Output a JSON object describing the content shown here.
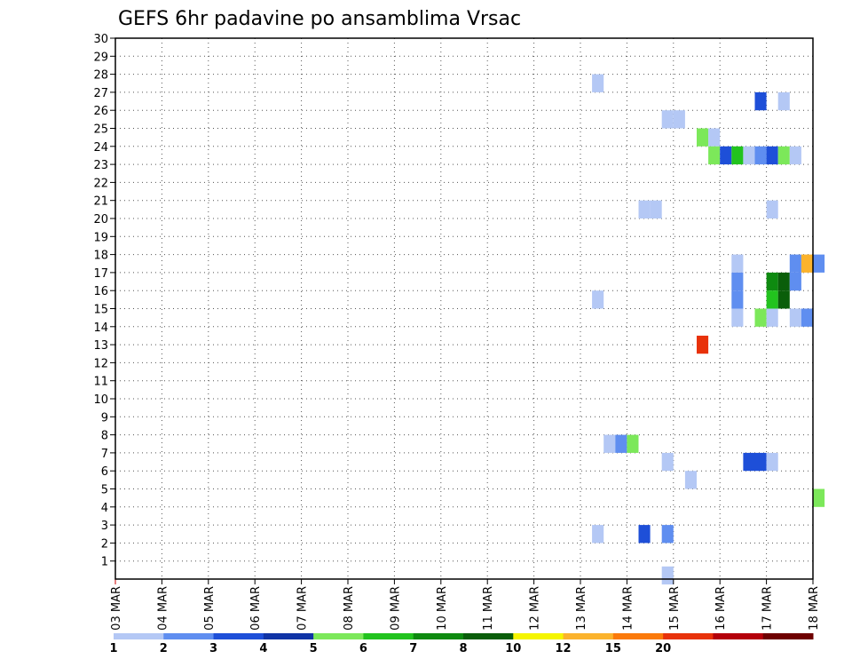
{
  "chart_data": {
    "type": "heatmap",
    "title": "GEFS 6hr padavine po ansamblima Vrsac",
    "xlabel": "",
    "ylabel": "",
    "x_tick_labels": [
      "03 MAR",
      "04 MAR",
      "05 MAR",
      "06 MAR",
      "07 MAR",
      "08 MAR",
      "09 MAR",
      "10 MAR",
      "11 MAR",
      "12 MAR",
      "13 MAR",
      "14 MAR",
      "15 MAR",
      "16 MAR",
      "17 MAR",
      "18 MAR"
    ],
    "x_range_days": [
      0,
      15
    ],
    "y_range": [
      0,
      30
    ],
    "y_ticks": [
      1,
      2,
      3,
      4,
      5,
      6,
      7,
      8,
      9,
      10,
      11,
      12,
      13,
      14,
      15,
      16,
      17,
      18,
      19,
      20,
      21,
      22,
      23,
      24,
      25,
      26,
      27,
      28,
      29,
      30
    ],
    "grid": true,
    "colorbar": {
      "placement": "bottom",
      "tick_labels": [
        "1",
        "2",
        "3",
        "4",
        "5",
        "6",
        "7",
        "8",
        "10",
        "12",
        "15",
        "20"
      ],
      "colors": [
        "#b4c8f5",
        "#5f8ef0",
        "#1e4fd8",
        "#1034a6",
        "#7ce85a",
        "#22c31e",
        "#0e8a10",
        "#0a5e0a",
        "#f5f500",
        "#fbb32d",
        "#fb7a0a",
        "#e8320a",
        "#b4000a",
        "#6e0000"
      ]
    },
    "cells": [
      {
        "x": 10.25,
        "y": 27,
        "color": "#b4c8f5"
      },
      {
        "x": 13.75,
        "y": 26,
        "color": "#1e4fd8"
      },
      {
        "x": 14.25,
        "y": 26,
        "color": "#b4c8f5"
      },
      {
        "x": 11.75,
        "y": 25,
        "color": "#b4c8f5"
      },
      {
        "x": 12.0,
        "y": 25,
        "color": "#b4c8f5"
      },
      {
        "x": 12.5,
        "y": 24,
        "color": "#7ce85a"
      },
      {
        "x": 12.75,
        "y": 24,
        "color": "#b4c8f5"
      },
      {
        "x": 12.75,
        "y": 23,
        "color": "#7ce85a"
      },
      {
        "x": 13.0,
        "y": 23,
        "color": "#1e4fd8"
      },
      {
        "x": 13.25,
        "y": 23,
        "color": "#22c31e"
      },
      {
        "x": 13.5,
        "y": 23,
        "color": "#b4c8f5"
      },
      {
        "x": 13.75,
        "y": 23,
        "color": "#5f8ef0"
      },
      {
        "x": 14.0,
        "y": 23,
        "color": "#1e4fd8"
      },
      {
        "x": 14.25,
        "y": 23,
        "color": "#7ce85a"
      },
      {
        "x": 14.5,
        "y": 23,
        "color": "#b4c8f5"
      },
      {
        "x": 11.25,
        "y": 20,
        "color": "#b4c8f5"
      },
      {
        "x": 11.5,
        "y": 20,
        "color": "#b4c8f5"
      },
      {
        "x": 14.0,
        "y": 20,
        "color": "#b4c8f5"
      },
      {
        "x": 13.25,
        "y": 17,
        "color": "#b4c8f5"
      },
      {
        "x": 14.5,
        "y": 17,
        "color": "#5f8ef0"
      },
      {
        "x": 14.75,
        "y": 17,
        "color": "#fbb32d"
      },
      {
        "x": 15.0,
        "y": 17,
        "color": "#5f8ef0"
      },
      {
        "x": 13.25,
        "y": 16,
        "color": "#5f8ef0"
      },
      {
        "x": 14.0,
        "y": 16,
        "color": "#0e8a10"
      },
      {
        "x": 14.25,
        "y": 16,
        "color": "#0a5e0a"
      },
      {
        "x": 14.5,
        "y": 16,
        "color": "#5f8ef0"
      },
      {
        "x": 13.25,
        "y": 15,
        "color": "#5f8ef0"
      },
      {
        "x": 14.0,
        "y": 15,
        "color": "#22c31e"
      },
      {
        "x": 14.25,
        "y": 15,
        "color": "#0a5e0a"
      },
      {
        "x": 10.25,
        "y": 15,
        "color": "#b4c8f5"
      },
      {
        "x": 13.25,
        "y": 14,
        "color": "#b4c8f5"
      },
      {
        "x": 13.75,
        "y": 14,
        "color": "#7ce85a"
      },
      {
        "x": 14.0,
        "y": 14,
        "color": "#b4c8f5"
      },
      {
        "x": 14.5,
        "y": 14,
        "color": "#b4c8f5"
      },
      {
        "x": 14.75,
        "y": 14,
        "color": "#5f8ef0"
      },
      {
        "x": 12.5,
        "y": 12.5,
        "color": "#e8320a"
      },
      {
        "x": 10.5,
        "y": 7,
        "color": "#b4c8f5"
      },
      {
        "x": 10.75,
        "y": 7,
        "color": "#5f8ef0"
      },
      {
        "x": 11.0,
        "y": 7,
        "color": "#7ce85a"
      },
      {
        "x": 11.75,
        "y": 6,
        "color": "#b4c8f5"
      },
      {
        "x": 13.5,
        "y": 6,
        "color": "#1e4fd8"
      },
      {
        "x": 13.75,
        "y": 6,
        "color": "#1e4fd8"
      },
      {
        "x": 14.0,
        "y": 6,
        "color": "#b4c8f5"
      },
      {
        "x": 12.25,
        "y": 5,
        "color": "#b4c8f5"
      },
      {
        "x": 15.0,
        "y": 4,
        "color": "#7ce85a"
      },
      {
        "x": 10.25,
        "y": 2,
        "color": "#b4c8f5"
      },
      {
        "x": 11.25,
        "y": 2,
        "color": "#1e4fd8"
      },
      {
        "x": 11.75,
        "y": 2,
        "color": "#5f8ef0"
      },
      {
        "x": 11.75,
        "y": -0.3,
        "color": "#b4c8f5"
      }
    ]
  }
}
